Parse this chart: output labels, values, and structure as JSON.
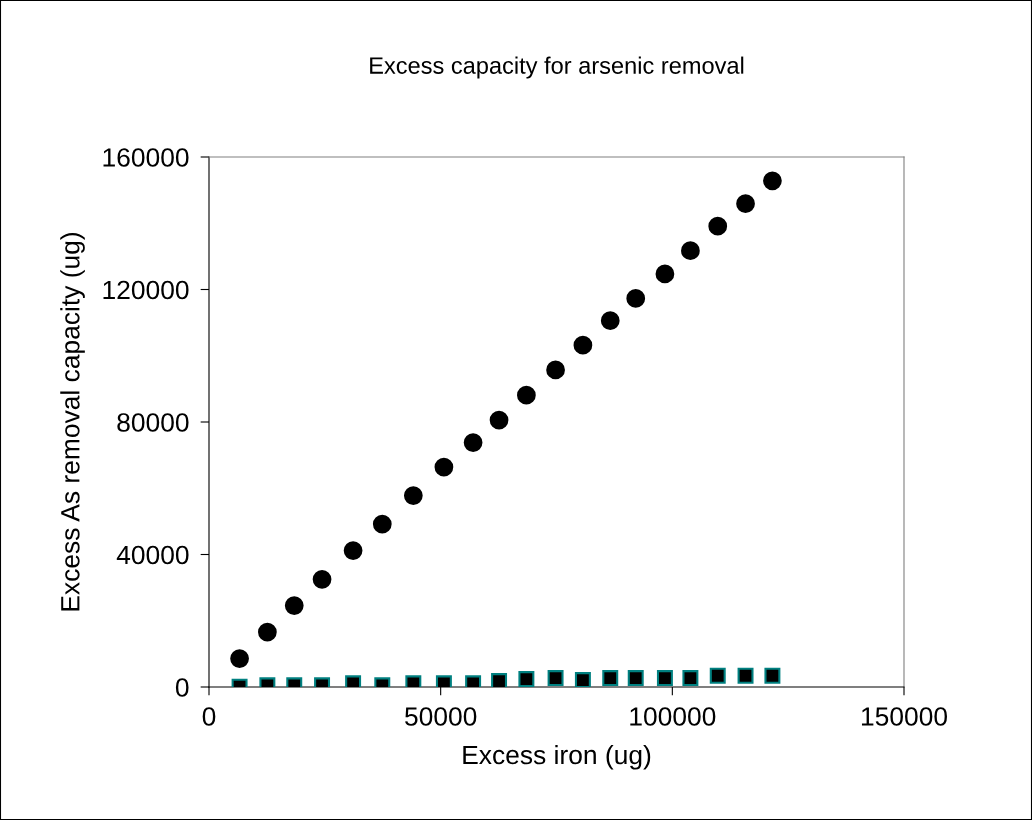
{
  "chart_data": {
    "type": "scatter",
    "title": "Excess capacity for arsenic removal",
    "xlabel": "Excess iron (ug)",
    "ylabel": "Excess As removal capacity (ug)",
    "series": [
      {
        "color": "#000000",
        "marker": "circle",
        "x": [
          6600,
          12600,
          18400,
          24400,
          31100,
          37400,
          44100,
          50700,
          57000,
          62600,
          68500,
          74800,
          80700,
          86600,
          92100,
          98400,
          103900,
          109800,
          115800,
          121600
        ],
        "values": [
          8600,
          16600,
          24600,
          32500,
          41200,
          49200,
          57800,
          66400,
          73800,
          80600,
          88100,
          95700,
          103200,
          110600,
          117300,
          124700,
          131700,
          139100,
          145900,
          152800
        ]
      },
      {
        "color": "#000000",
        "marker": "square",
        "x": [
          6600,
          12600,
          18400,
          24400,
          31100,
          37400,
          44100,
          50700,
          57000,
          62600,
          68500,
          74800,
          80700,
          86600,
          92100,
          98400,
          103900,
          109800,
          115800,
          121600
        ],
        "values": [
          100,
          500,
          500,
          500,
          1100,
          500,
          1100,
          1100,
          1100,
          1800,
          2400,
          2700,
          2100,
          2700,
          2700,
          2700,
          2700,
          3400,
          3400,
          3400
        ]
      }
    ],
    "xlim": [
      0,
      150000
    ],
    "ylim": [
      0,
      160000
    ],
    "xticks": [
      0,
      50000,
      100000,
      150000
    ],
    "yticks": [
      0,
      40000,
      80000,
      120000,
      160000
    ],
    "grid": false,
    "legend": false
  }
}
